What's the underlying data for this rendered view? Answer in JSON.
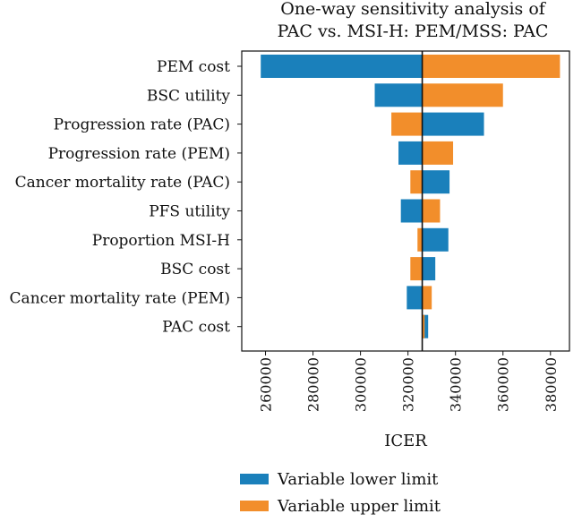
{
  "chart_data": {
    "type": "bar",
    "orientation": "horizontal",
    "subtype": "tornado",
    "title": [
      "One-way sensitivity analysis of",
      "PAC vs. MSI-H: PEM/MSS: PAC"
    ],
    "xlabel": "ICER",
    "ylabel": "",
    "base_value": 326000,
    "xlim": [
      250000,
      388000
    ],
    "xticks": [
      260000,
      280000,
      300000,
      320000,
      340000,
      360000,
      380000
    ],
    "categories": [
      "PEM cost",
      "BSC utility",
      "Progression rate (PAC)",
      "Progression rate (PEM)",
      "Cancer mortality rate (PAC)",
      "PFS utility",
      "Proportion MSI-H",
      "BSC cost",
      "Cancer mortality rate (PEM)",
      "PAC cost"
    ],
    "series": [
      {
        "name": "Variable lower limit",
        "color": "#1a80bb",
        "values": [
          258000,
          306000,
          352000,
          316000,
          337500,
          317000,
          337000,
          331500,
          319500,
          328500
        ]
      },
      {
        "name": "Variable upper limit",
        "color": "#f28e2b",
        "values": [
          384000,
          360000,
          313000,
          339000,
          321000,
          333500,
          324000,
          321000,
          330000,
          327000
        ]
      }
    ],
    "grid": false,
    "legend_position": "bottom"
  }
}
